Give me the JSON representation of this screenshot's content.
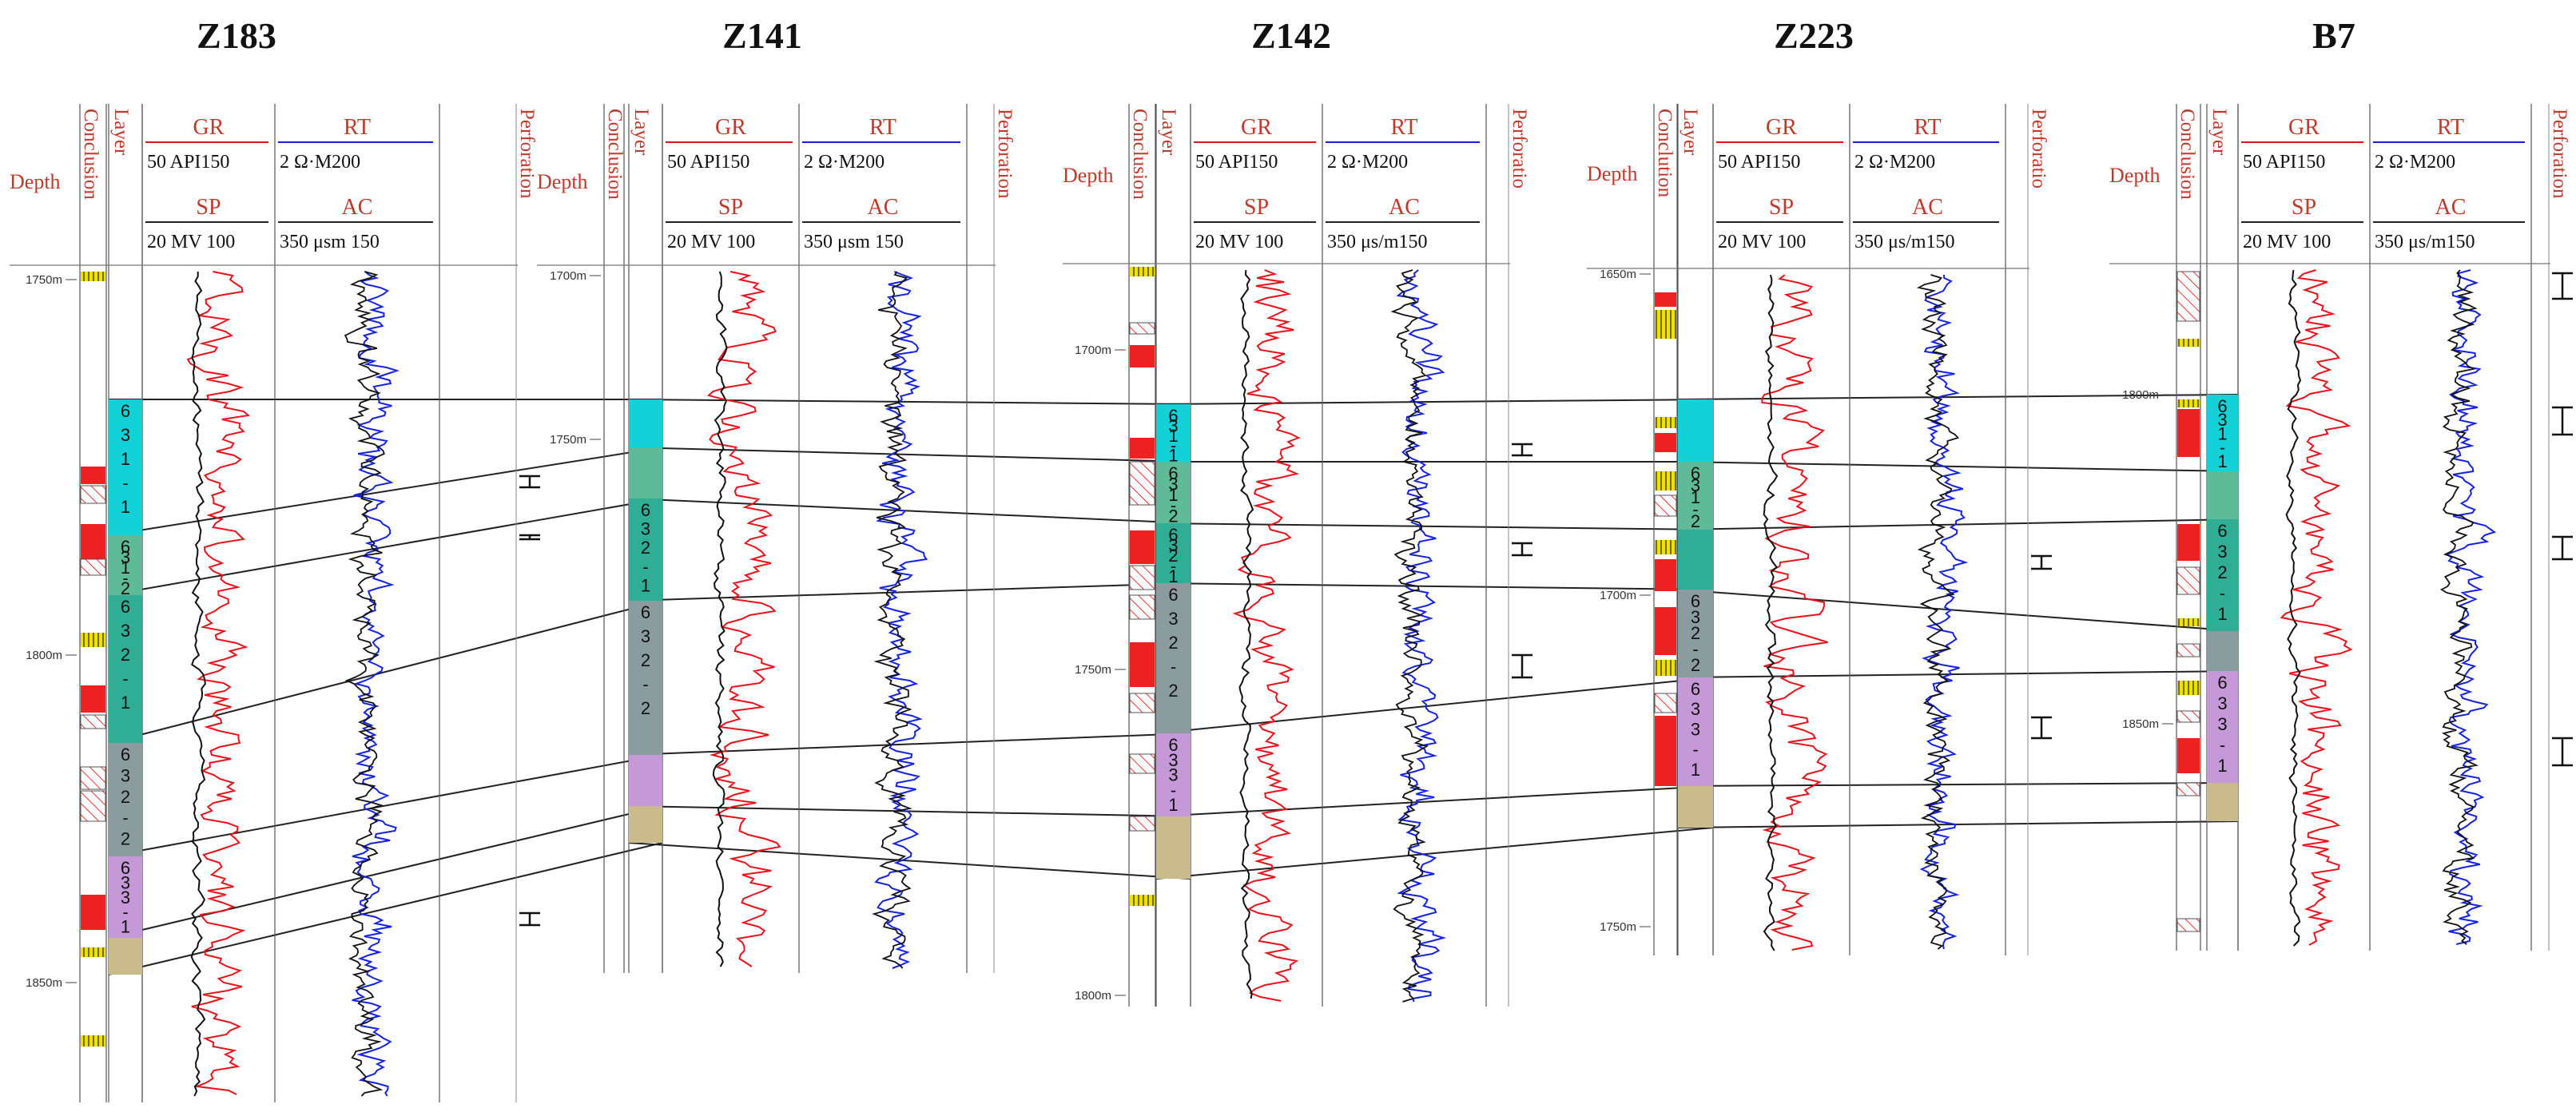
{
  "headers": {
    "depth": "Depth",
    "conclusion": "Conclusion",
    "conclution": "Conclution",
    "layer": "Layer",
    "perforation": "Perforation",
    "perforation_cut": "Perforatio",
    "gr": "GR",
    "sp": "SP",
    "rt": "RT",
    "ac": "AC",
    "gr_scale": "50 API150",
    "sp_scale": "20 MV 100",
    "rt_scale": "2 Ω·M200",
    "ac_scale_a": "350 μsm 150",
    "ac_scale_b": "350 μs/m150"
  },
  "colors": {
    "gr_curve": "#e8121b",
    "rt_curve": "#1422e0",
    "correlation": "#222222",
    "conclusion_red": "#ee2222",
    "conclusion_yellow": "#f0e000",
    "zone_631": "#12d2d8",
    "zone_631_2": "#5fba9a",
    "zone_632_1": "#2fae95",
    "zone_632_2": "#8b9c9f",
    "zone_633": "#c598d8",
    "zone_base": "#c9bb8c"
  },
  "wells": [
    {
      "name": "Z183",
      "conclusion_label": "Conclusion",
      "perf_label": "Perforation",
      "ac_scale": "350 μsm 150",
      "depths": [
        "1750m",
        "1800m",
        "1850m"
      ],
      "zones": [
        {
          "label": "631-1"
        },
        {
          "label": "631-2"
        },
        {
          "label": "632-1"
        },
        {
          "label": "632-2"
        },
        {
          "label": "633-1"
        },
        {
          "label": ""
        }
      ]
    },
    {
      "name": "Z141",
      "conclusion_label": "Conclusion",
      "perf_label": "Perforation",
      "ac_scale": "350 μsm 150",
      "depths": [
        "1700m",
        "1750m"
      ],
      "zones": [
        {
          "label": ""
        },
        {
          "label": ""
        },
        {
          "label": "632-1"
        },
        {
          "label": "632-2"
        },
        {
          "label": ""
        },
        {
          "label": ""
        }
      ]
    },
    {
      "name": "Z142",
      "conclusion_label": "Conclusion",
      "perf_label": "Perforatio",
      "ac_scale": "350 μs/m150",
      "depths": [
        "1700m",
        "1750m",
        "1800m"
      ],
      "zones": [
        {
          "label": "631-1"
        },
        {
          "label": "631-2"
        },
        {
          "label": "632-1"
        },
        {
          "label": "632-2"
        },
        {
          "label": "633-1"
        },
        {
          "label": ""
        }
      ]
    },
    {
      "name": "Z223",
      "conclusion_label": "Conclution",
      "perf_label": "Perforatio",
      "ac_scale": "350 μs/m150",
      "depths": [
        "1650m",
        "1700m",
        "1750m"
      ],
      "zones": [
        {
          "label": ""
        },
        {
          "label": "631-2"
        },
        {
          "label": ""
        },
        {
          "label": "632-2"
        },
        {
          "label": "633-1"
        },
        {
          "label": ""
        }
      ]
    },
    {
      "name": "B7",
      "conclusion_label": "Conclusion",
      "perf_label": "Perforation",
      "ac_scale": "350 μs/m150",
      "depths": [
        "1800m",
        "1850m"
      ],
      "zones": [
        {
          "label": "631-1"
        },
        {
          "label": ""
        },
        {
          "label": "632-1"
        },
        {
          "label": ""
        },
        {
          "label": "633-1"
        },
        {
          "label": ""
        }
      ]
    }
  ]
}
